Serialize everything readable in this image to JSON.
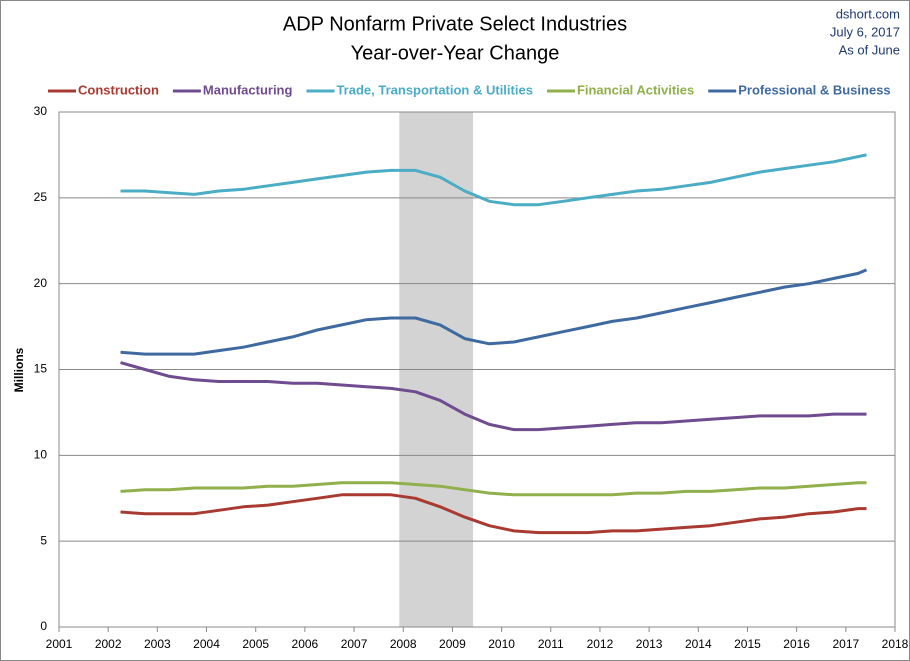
{
  "chart_data": {
    "type": "line",
    "title": "ADP Nonfarm Private Select Industries",
    "subtitle": "Year-over-Year Change",
    "annotations": [
      "dshort.com",
      "July 6, 2017",
      "As of June"
    ],
    "y_label": "Millions",
    "x": [
      2002.25,
      2002.75,
      2003.25,
      2003.75,
      2004.25,
      2004.75,
      2005.25,
      2005.75,
      2006.25,
      2006.75,
      2007.25,
      2007.75,
      2008.25,
      2008.75,
      2009.25,
      2009.75,
      2010.25,
      2010.75,
      2011.25,
      2011.75,
      2012.25,
      2012.75,
      2013.25,
      2013.75,
      2014.25,
      2014.75,
      2015.25,
      2015.75,
      2016.25,
      2016.75,
      2017.25,
      2017.42
    ],
    "series": [
      {
        "name": "Construction",
        "color": "#a83a32",
        "values": [
          6.7,
          6.6,
          6.6,
          6.6,
          6.8,
          7.0,
          7.1,
          7.3,
          7.5,
          7.7,
          7.7,
          7.7,
          7.5,
          7.0,
          6.4,
          5.9,
          5.6,
          5.5,
          5.5,
          5.5,
          5.6,
          5.6,
          5.7,
          5.8,
          5.9,
          6.1,
          6.3,
          6.4,
          6.6,
          6.7,
          6.9,
          6.9
        ]
      },
      {
        "name": "Manufacturing",
        "color": "#6f4b8f",
        "values": [
          15.4,
          15.0,
          14.6,
          14.4,
          14.3,
          14.3,
          14.3,
          14.2,
          14.2,
          14.1,
          14.0,
          13.9,
          13.7,
          13.2,
          12.4,
          11.8,
          11.5,
          11.5,
          11.6,
          11.7,
          11.8,
          11.9,
          11.9,
          12.0,
          12.1,
          12.2,
          12.3,
          12.3,
          12.3,
          12.4,
          12.4,
          12.4
        ]
      },
      {
        "name": "Trade, Transportation & Utilities",
        "color": "#4bacc6",
        "values": [
          25.4,
          25.4,
          25.3,
          25.2,
          25.4,
          25.5,
          25.7,
          25.9,
          26.1,
          26.3,
          26.5,
          26.6,
          26.6,
          26.2,
          25.4,
          24.8,
          24.6,
          24.6,
          24.8,
          25.0,
          25.2,
          25.4,
          25.5,
          25.7,
          25.9,
          26.2,
          26.5,
          26.7,
          26.9,
          27.1,
          27.4,
          27.5
        ]
      },
      {
        "name": "Financial Activities",
        "color": "#8fb04a",
        "values": [
          7.9,
          8.0,
          8.0,
          8.1,
          8.1,
          8.1,
          8.2,
          8.2,
          8.3,
          8.4,
          8.4,
          8.4,
          8.3,
          8.2,
          8.0,
          7.8,
          7.7,
          7.7,
          7.7,
          7.7,
          7.7,
          7.8,
          7.8,
          7.9,
          7.9,
          8.0,
          8.1,
          8.1,
          8.2,
          8.3,
          8.4,
          8.4
        ]
      },
      {
        "name": "Professional & Business",
        "color": "#3f6aa0",
        "values": [
          16.0,
          15.9,
          15.9,
          15.9,
          16.1,
          16.3,
          16.6,
          16.9,
          17.3,
          17.6,
          17.9,
          18.0,
          18.0,
          17.6,
          16.8,
          16.5,
          16.6,
          16.9,
          17.2,
          17.5,
          17.8,
          18.0,
          18.3,
          18.6,
          18.9,
          19.2,
          19.5,
          19.8,
          20.0,
          20.3,
          20.6,
          20.8
        ]
      }
    ],
    "recession": {
      "start": 2007.92,
      "end": 2009.42,
      "color": "#d3d3d3"
    },
    "xlim": [
      2001,
      2018
    ],
    "xticks": [
      2001,
      2002,
      2003,
      2004,
      2005,
      2006,
      2007,
      2008,
      2009,
      2010,
      2011,
      2012,
      2013,
      2014,
      2015,
      2016,
      2017,
      2018
    ],
    "ylim": [
      0,
      30
    ],
    "yticks": [
      0,
      5,
      10,
      15,
      20,
      25,
      30
    ],
    "grid": true,
    "legend": "top"
  }
}
